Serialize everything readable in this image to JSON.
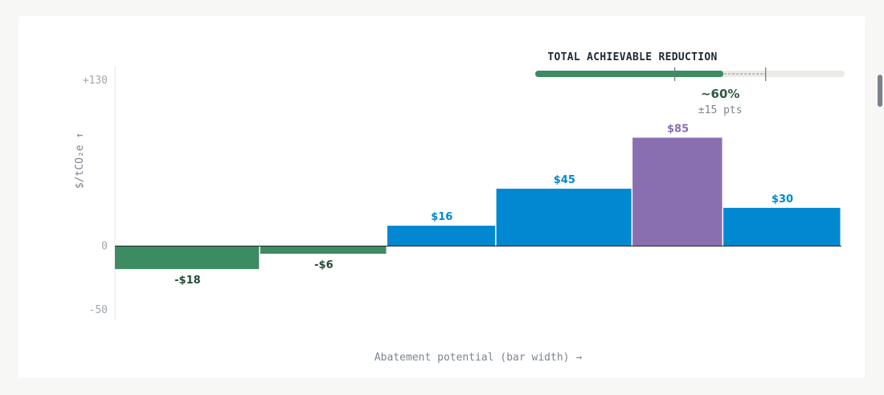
{
  "colors": {
    "negative": "#3d8b60",
    "positive": "#0288d1",
    "highlight": "#8a6fb0",
    "negative_label": "#244a37",
    "axis": "#e3e5e8",
    "baseline": "#222222",
    "track": "#eceae6",
    "marker": "#6b7580"
  },
  "chart_data": {
    "type": "bar",
    "ylabel": "$/tCO₂e ↑",
    "xlabel": "Abatement potential (bar width) →",
    "ylim": [
      -50,
      130
    ],
    "yticks": [
      {
        "value": 130,
        "label": "+130"
      },
      {
        "value": 0,
        "label": "0"
      },
      {
        "value": -50,
        "label": "-50"
      }
    ],
    "bars": [
      {
        "value": -18,
        "label": "-$18",
        "width": 16,
        "style": "negative"
      },
      {
        "value": -6,
        "label": "-$6",
        "width": 14,
        "style": "negative"
      },
      {
        "value": 16,
        "label": "$16",
        "width": 12,
        "style": "positive"
      },
      {
        "value": 45,
        "label": "$45",
        "width": 15,
        "style": "positive"
      },
      {
        "value": 85,
        "label": "$85",
        "width": 10,
        "style": "highlight"
      },
      {
        "value": 30,
        "label": "$30",
        "width": 13,
        "style": "positive"
      }
    ]
  },
  "reduction": {
    "title": "TOTAL ACHIEVABLE REDUCTION",
    "value_percent": 60,
    "value_text": "~60%",
    "uncertainty_points": 15,
    "uncertainty_text": "±15 pts"
  }
}
